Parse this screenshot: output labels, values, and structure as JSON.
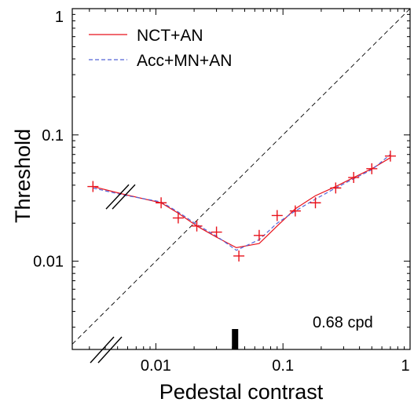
{
  "chart_data": {
    "type": "line",
    "xlabel": "Pedestal contrast",
    "ylabel": "Threshold",
    "xscale": "log",
    "yscale": "log",
    "xlim": [
      0.0022,
      1
    ],
    "ylim": [
      0.002,
      1
    ],
    "x_ticks": [
      {
        "value": 0.01,
        "label": "0.01"
      },
      {
        "value": 0.1,
        "label": "0.1"
      },
      {
        "value": 1,
        "label": "1"
      }
    ],
    "y_ticks": [
      {
        "value": 0.01,
        "label": "0.01"
      },
      {
        "value": 0.1,
        "label": "0.1"
      },
      {
        "value": 1,
        "label": "1"
      }
    ],
    "legend_position": "top-left",
    "annotation": "0.68 cpd",
    "marker_bar_x": 0.042,
    "identity_line": true,
    "axis_breaks": true,
    "series": [
      {
        "name": "NCT+AN",
        "style": "solid",
        "color": "#e8121b",
        "x": [
          0.0032,
          0.0055,
          0.011,
          0.015,
          0.021,
          0.03,
          0.043,
          0.065,
          0.09,
          0.125,
          0.18,
          0.26,
          0.36,
          0.5,
          0.7
        ],
        "y": [
          0.039,
          0.034,
          0.029,
          0.024,
          0.019,
          0.0155,
          0.0128,
          0.0138,
          0.019,
          0.026,
          0.033,
          0.039,
          0.046,
          0.054,
          0.066
        ]
      },
      {
        "name": "Acc+MN+AN",
        "style": "dashed",
        "color": "#5565d8",
        "x": [
          0.0032,
          0.0055,
          0.011,
          0.015,
          0.021,
          0.03,
          0.043,
          0.065,
          0.09,
          0.125,
          0.18,
          0.26,
          0.36,
          0.5,
          0.7
        ],
        "y": [
          0.038,
          0.0335,
          0.0295,
          0.0245,
          0.0195,
          0.0158,
          0.0122,
          0.0148,
          0.02,
          0.025,
          0.031,
          0.038,
          0.045,
          0.053,
          0.07
        ]
      }
    ],
    "data_points": {
      "marker": "+",
      "color": "#e8121b",
      "x": [
        0.0032,
        0.011,
        0.015,
        0.021,
        0.03,
        0.045,
        0.065,
        0.09,
        0.125,
        0.18,
        0.26,
        0.36,
        0.5,
        0.7
      ],
      "y": [
        0.039,
        0.029,
        0.022,
        0.019,
        0.017,
        0.011,
        0.016,
        0.023,
        0.025,
        0.029,
        0.038,
        0.046,
        0.054,
        0.068
      ]
    }
  }
}
